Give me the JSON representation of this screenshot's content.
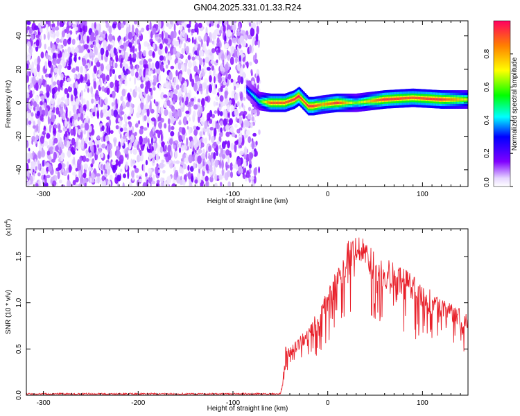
{
  "title": "GN04.2025.331.01.33.R24",
  "chart_data": [
    {
      "type": "heatmap",
      "xlabel": "Height of straight line (km)",
      "ylabel": "Frequency (Hz)",
      "xlim": [
        -318,
        148
      ],
      "ylim": [
        -50,
        49
      ],
      "xticks": [
        -300,
        -200,
        -100,
        0,
        100
      ],
      "yticks": [
        -40,
        -20,
        0,
        20,
        40
      ],
      "colorbar": {
        "label": "Normalized spectral amplitude",
        "range": [
          0,
          1
        ],
        "ticks": [
          "0.0",
          "0.2",
          "0.4",
          "0.6",
          "0.8"
        ],
        "colormap": "rainbow"
      },
      "noise_region_x": [
        -318,
        -72
      ],
      "ridge": {
        "x": [
          -85,
          -72,
          -60,
          -45,
          -35,
          -30,
          -25,
          -20,
          -15,
          -5,
          10,
          30,
          60,
          90,
          120,
          148
        ],
        "freq": [
          8,
          1,
          0,
          0,
          2,
          4,
          1,
          -2,
          -2,
          -1,
          0,
          0,
          2,
          3,
          2,
          2
        ],
        "peak_amplitude": [
          0.35,
          0.5,
          0.9,
          0.9,
          0.95,
          1.0,
          0.9,
          0.95,
          0.95,
          0.8,
          0.95,
          0.6,
          0.95,
          0.9,
          0.95,
          0.7
        ]
      },
      "grid": false
    },
    {
      "type": "line",
      "xlabel": "Height of straight line (km)",
      "ylabel": "SNR (10 * v/v)",
      "y_multiplier": "(x10^4)",
      "xlim": [
        -318,
        148
      ],
      "ylim": [
        0,
        1.8
      ],
      "xticks": [
        -300,
        -200,
        -100,
        0,
        100
      ],
      "yticks": [
        "0.0",
        "0.5",
        "1.0",
        "1.5"
      ],
      "color": "#e8202a",
      "series": [
        {
          "x": [
            -318,
            -100,
            -50,
            -48,
            -46,
            -44,
            -42,
            -40,
            -30,
            -20,
            -10,
            0,
            10,
            20,
            25,
            30,
            35,
            40,
            50,
            60,
            70,
            80,
            90,
            100,
            110,
            120,
            130,
            140,
            148
          ],
          "y": [
            0.01,
            0.01,
            0.01,
            0.1,
            0.3,
            0.5,
            0.45,
            0.45,
            0.55,
            0.65,
            0.8,
            1.0,
            1.2,
            1.45,
            1.55,
            1.6,
            1.5,
            1.45,
            1.35,
            1.3,
            1.25,
            1.2,
            1.12,
            1.05,
            0.98,
            0.92,
            0.87,
            0.82,
            0.8
          ]
        }
      ],
      "grid": false
    }
  ]
}
